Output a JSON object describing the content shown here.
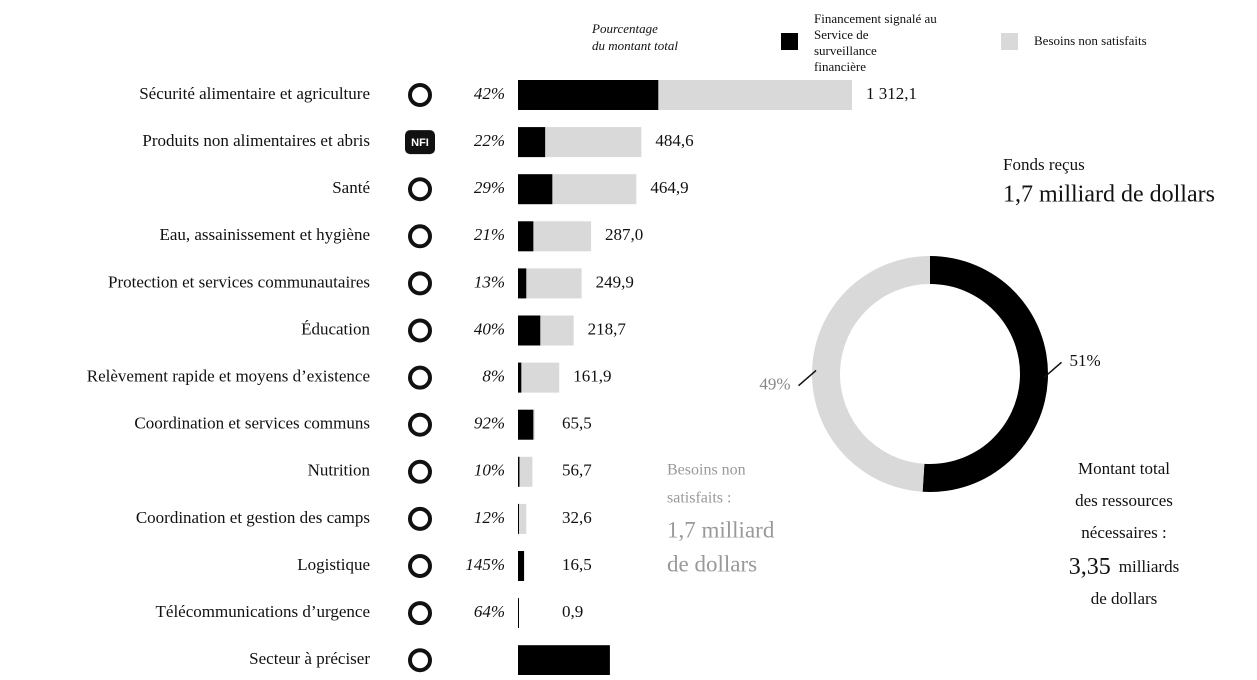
{
  "chart_data": [
    {
      "type": "bar",
      "header": [
        "Pourcentage",
        "du montant total"
      ],
      "categories": [
        "Sécurité alimentaire et agriculture",
        "Produits non alimentaires et abris",
        "Santé",
        "Eau, assainissement et hygiène",
        "Protection et services communautaires",
        "Éducation",
        "Relèvement rapide et moyens d’existence",
        "Coordination et services communs",
        "Nutrition",
        "Coordination et gestion des camps",
        "Logistique",
        "Télécommunications d’urgence",
        "Secteur à préciser"
      ],
      "values": [
        1312.1,
        484.6,
        464.9,
        287.0,
        249.9,
        218.7,
        161.9,
        65.5,
        56.7,
        32.6,
        16.5,
        0.9,
        null
      ],
      "value_labels": [
        "1 312,1",
        "484,6",
        "464,9",
        "287,0",
        "249,9",
        "218,7",
        "161,9",
        "65,5",
        "56,7",
        "32,6",
        "16,5",
        "0,9",
        null
      ],
      "percent": [
        42,
        22,
        29,
        21,
        13,
        40,
        8,
        92,
        10,
        12,
        145,
        64,
        null
      ],
      "percent_labels": [
        "42%",
        "22%",
        "29%",
        "21%",
        "13%",
        "40%",
        "8%",
        "92%",
        "10%",
        "12%",
        "145%",
        "64%",
        null
      ],
      "unassigned_funding": 361,
      "icon_label": "NFI",
      "series": [
        {
          "name": "Financement signalé au Service de surveillance financière",
          "color": "#000000"
        },
        {
          "name": "Besoins non satisfaits",
          "color": "#d9d9d9"
        }
      ]
    },
    {
      "type": "pie",
      "values": [
        51,
        49
      ],
      "value_labels": [
        "51%",
        "49%"
      ],
      "colors": [
        "#000000",
        "#d9d9d9"
      ],
      "funded_title": "Fonds reçus",
      "funded_amount": "1,7 milliard de dollars",
      "unmet_lines": [
        "Besoins non",
        "satisfaits :",
        "1,7 milliard",
        "de dollars"
      ],
      "total_lines": [
        "Montant total",
        "des ressources",
        "nécessaires :"
      ],
      "total_amount": "3,35",
      "total_unit": "milliards",
      "total_last": "de dollars"
    }
  ]
}
